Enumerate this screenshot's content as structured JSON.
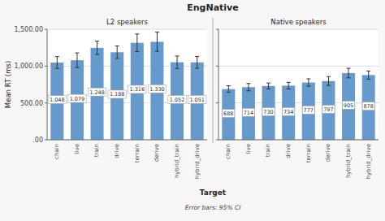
{
  "title": "EngNative",
  "xlabel": "Target",
  "annotations": [
    "Error bars: 95% CI"
  ],
  "chart_data": [
    {
      "type": "bar",
      "title": "L2 speakers",
      "ylabel": "Mean RT (ms)",
      "categories": [
        "chain",
        "live",
        "train",
        "drive",
        "terrain",
        "derive",
        "hybrid_train",
        "hybrid_drive"
      ],
      "values": [
        1048,
        1079,
        1248,
        1188,
        1316,
        1330,
        1052,
        1051
      ],
      "errors": [
        80,
        100,
        90,
        85,
        120,
        130,
        85,
        80
      ],
      "value_labels": [
        "1.048",
        "1.079",
        "1.248",
        "1.188",
        "1.316",
        "1.330",
        "1.052",
        "1.051"
      ],
      "color": "#6699CC",
      "ylim": [
        0,
        1500
      ],
      "yticks": [
        {
          "value": 0,
          "label": ".00"
        },
        {
          "value": 500,
          "label": "500.00"
        },
        {
          "value": 1000,
          "label": "1,000.00"
        },
        {
          "value": 1500,
          "label": "1,500.00"
        }
      ],
      "grid": true,
      "data_labels": true,
      "tick_labels": true
    },
    {
      "type": "bar",
      "title": "Native speakers",
      "categories": [
        "chain",
        "live",
        "train",
        "drive",
        "terrain",
        "derive",
        "hybrid_train",
        "hybrid_drive"
      ],
      "values": [
        688,
        714,
        730,
        734,
        777,
        797,
        905,
        878
      ],
      "errors": [
        45,
        50,
        40,
        45,
        50,
        60,
        65,
        55
      ],
      "color": "#6699CC",
      "ylim": [
        0,
        1500
      ],
      "yticks": [
        0,
        500,
        1000,
        1500
      ],
      "grid": true,
      "data_labels": true,
      "tick_labels": "x"
    }
  ]
}
